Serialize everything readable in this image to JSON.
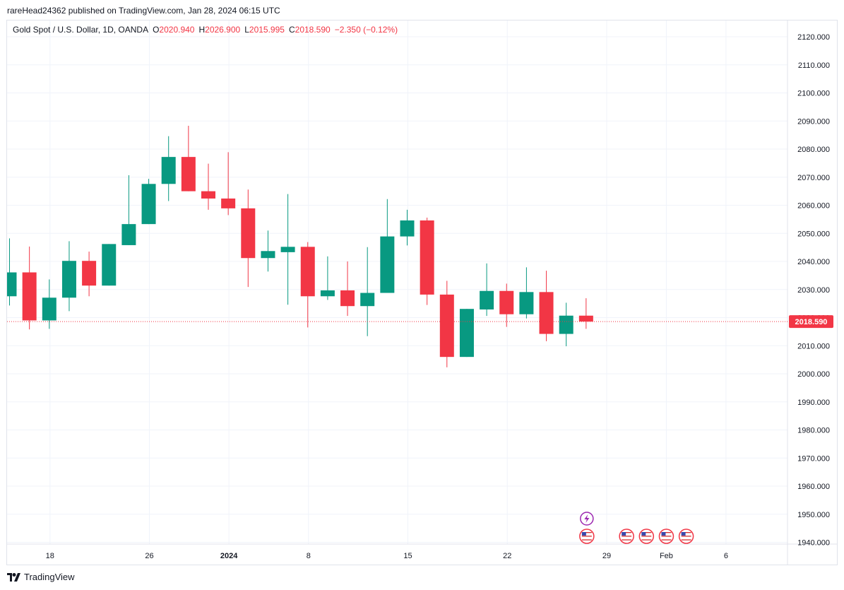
{
  "publisher_line": "rareHead24362 published on TradingView.com, Jan 28, 2024 06:15 UTC",
  "legend": {
    "symbol": "Gold Spot / U.S. Dollar, 1D, OANDA",
    "open_label": "O",
    "open": "2020.940",
    "high_label": "H",
    "high": "2026.900",
    "low_label": "L",
    "low": "2015.995",
    "close_label": "C",
    "close": "2018.590",
    "change": "−2.350 (−0.12%)"
  },
  "footer": {
    "brand": "TradingView"
  },
  "colors": {
    "up": "#089981",
    "down": "#f23645",
    "grid": "#f0f3fa",
    "axis_text": "#131722"
  },
  "chart_data": {
    "type": "candlestick",
    "title": "Gold Spot / U.S. Dollar, 1D, OANDA",
    "ylim": [
      1936,
      2126
    ],
    "y_ticks": [
      "2120.000",
      "2110.000",
      "2100.000",
      "2090.000",
      "2080.000",
      "2070.000",
      "2060.000",
      "2050.000",
      "2040.000",
      "2030.000",
      "2020.000",
      "2010.000",
      "2000.000",
      "1990.000",
      "1980.000",
      "1970.000",
      "1960.000",
      "1950.000",
      "1940.000"
    ],
    "x_ticks": [
      {
        "label": "18",
        "index": 2,
        "bold": false
      },
      {
        "label": "26",
        "index": 7,
        "bold": false
      },
      {
        "label": "2024",
        "index": 11,
        "bold": true
      },
      {
        "label": "8",
        "index": 15,
        "bold": false
      },
      {
        "label": "15",
        "index": 20,
        "bold": false
      },
      {
        "label": "22",
        "index": 25,
        "bold": false
      },
      {
        "label": "29",
        "index": 30,
        "bold": false
      },
      {
        "label": "Feb",
        "index": 33,
        "bold": false
      },
      {
        "label": "6",
        "index": 36,
        "bold": false
      }
    ],
    "candles": [
      {
        "o": 2027.6,
        "h": 2048.2,
        "l": 2024.3,
        "c": 2036.1
      },
      {
        "o": 2036.1,
        "h": 2045.3,
        "l": 2015.8,
        "c": 2019.0
      },
      {
        "o": 2019.0,
        "h": 2033.6,
        "l": 2016.0,
        "c": 2027.1
      },
      {
        "o": 2027.1,
        "h": 2047.2,
        "l": 2022.3,
        "c": 2040.2
      },
      {
        "o": 2040.2,
        "h": 2043.5,
        "l": 2027.6,
        "c": 2031.4
      },
      {
        "o": 2031.4,
        "h": 2046.2,
        "l": 2031.4,
        "c": 2046.2
      },
      {
        "o": 2045.8,
        "h": 2070.7,
        "l": 2045.8,
        "c": 2053.3
      },
      {
        "o": 2053.3,
        "h": 2069.4,
        "l": 2053.3,
        "c": 2067.6
      },
      {
        "o": 2067.6,
        "h": 2084.6,
        "l": 2061.5,
        "c": 2077.2
      },
      {
        "o": 2077.2,
        "h": 2088.3,
        "l": 2065.0,
        "c": 2065.0
      },
      {
        "o": 2065.0,
        "h": 2074.8,
        "l": 2058.4,
        "c": 2062.4
      },
      {
        "o": 2062.4,
        "h": 2078.9,
        "l": 2056.5,
        "c": 2058.9
      },
      {
        "o": 2058.9,
        "h": 2065.6,
        "l": 2030.9,
        "c": 2041.2
      },
      {
        "o": 2041.2,
        "h": 2051.0,
        "l": 2036.4,
        "c": 2043.7
      },
      {
        "o": 2043.3,
        "h": 2064.0,
        "l": 2024.6,
        "c": 2045.2
      },
      {
        "o": 2045.2,
        "h": 2046.9,
        "l": 2016.5,
        "c": 2027.6
      },
      {
        "o": 2027.6,
        "h": 2041.8,
        "l": 2026.3,
        "c": 2029.7
      },
      {
        "o": 2029.7,
        "h": 2040.0,
        "l": 2020.6,
        "c": 2024.1
      },
      {
        "o": 2024.1,
        "h": 2045.1,
        "l": 2013.4,
        "c": 2028.8
      },
      {
        "o": 2028.8,
        "h": 2062.2,
        "l": 2028.8,
        "c": 2048.9
      },
      {
        "o": 2048.9,
        "h": 2058.4,
        "l": 2045.7,
        "c": 2054.6
      },
      {
        "o": 2054.6,
        "h": 2055.6,
        "l": 2024.5,
        "c": 2028.2
      },
      {
        "o": 2028.2,
        "h": 2033.1,
        "l": 2002.3,
        "c": 2006.0
      },
      {
        "o": 2006.0,
        "h": 2023.1,
        "l": 2006.0,
        "c": 2023.1
      },
      {
        "o": 2022.9,
        "h": 2039.3,
        "l": 2020.6,
        "c": 2029.5
      },
      {
        "o": 2029.5,
        "h": 2032.1,
        "l": 2016.7,
        "c": 2021.2
      },
      {
        "o": 2021.2,
        "h": 2037.9,
        "l": 2019.7,
        "c": 2029.1
      },
      {
        "o": 2029.1,
        "h": 2036.7,
        "l": 2011.6,
        "c": 2014.2
      },
      {
        "o": 2014.2,
        "h": 2025.3,
        "l": 2009.8,
        "c": 2020.7
      },
      {
        "o": 2020.7,
        "h": 2026.9,
        "l": 2016.0,
        "c": 2018.6
      }
    ],
    "last_price": "2018.590",
    "event_icons": [
      {
        "index": 29,
        "kind": "lightning-icon",
        "row": 1
      },
      {
        "index": 29,
        "kind": "us-flag-icon",
        "row": 2
      },
      {
        "index": 31,
        "kind": "us-flag-icon",
        "row": 2
      },
      {
        "index": 32,
        "kind": "us-flag-icon",
        "row": 2
      },
      {
        "index": 33,
        "kind": "us-flag-icon",
        "row": 2
      },
      {
        "index": 34,
        "kind": "us-flag-icon",
        "row": 2
      }
    ]
  }
}
